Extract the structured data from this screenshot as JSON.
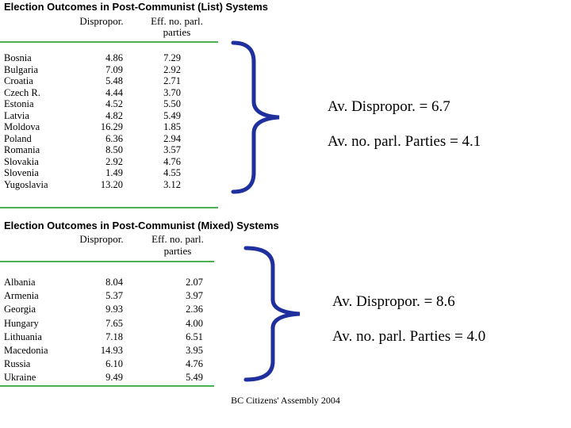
{
  "list_table": {
    "title": "Election Outcomes in Post-Communist (List) Systems",
    "col_disp": "Dispropor.",
    "col_eff_1": "Eff. no. parl.",
    "col_eff_2": "parties",
    "rows": [
      {
        "country": "Bosnia",
        "disp": "4.86",
        "eff": "7.29"
      },
      {
        "country": "Bulgaria",
        "disp": "7.09",
        "eff": "2.92"
      },
      {
        "country": "Croatia",
        "disp": "5.48",
        "eff": "2.71"
      },
      {
        "country": "Czech R.",
        "disp": "4.44",
        "eff": "3.70"
      },
      {
        "country": "Estonia",
        "disp": "4.52",
        "eff": "5.50"
      },
      {
        "country": "Latvia",
        "disp": "4.82",
        "eff": "5.49"
      },
      {
        "country": "Moldova",
        "disp": "16.29",
        "eff": "1.85"
      },
      {
        "country": "Poland",
        "disp": "6.36",
        "eff": "2.94"
      },
      {
        "country": "Romania",
        "disp": "8.50",
        "eff": "3.57"
      },
      {
        "country": "Slovakia",
        "disp": "2.92",
        "eff": "4.76"
      },
      {
        "country": "Slovenia",
        "disp": "1.49",
        "eff": "4.55"
      },
      {
        "country": "Yugoslavia",
        "disp": "13.20",
        "eff": "3.12"
      }
    ]
  },
  "mixed_table": {
    "title": "Election Outcomes in Post-Communist (Mixed) Systems",
    "col_disp": "Dispropor.",
    "col_eff_1": "Eff. no. parl.",
    "col_eff_2": "parties",
    "rows": [
      {
        "country": "Albania",
        "disp": "8.04",
        "eff": "2.07"
      },
      {
        "country": "Armenia",
        "disp": "5.37",
        "eff": "3.97"
      },
      {
        "country": "Georgia",
        "disp": "9.93",
        "eff": "2.36"
      },
      {
        "country": "Hungary",
        "disp": "7.65",
        "eff": "4.00"
      },
      {
        "country": "Lithuania",
        "disp": "7.18",
        "eff": "6.51"
      },
      {
        "country": "Macedonia",
        "disp": "14.93",
        "eff": "3.95"
      },
      {
        "country": "Russia",
        "disp": "6.10",
        "eff": "4.76"
      },
      {
        "country": "Ukraine",
        "disp": "9.49",
        "eff": "5.49"
      }
    ]
  },
  "summary_list": {
    "disp": "Av. Dispropor. = 6.7",
    "parties": "Av. no. parl. Parties = 4.1"
  },
  "summary_mixed": {
    "disp": "Av. Dispropor. = 8.6",
    "parties": "Av. no. parl. Parties = 4.0"
  },
  "footer": "BC Citizens' Assembly 2004",
  "colors": {
    "rule": "#4caf50",
    "brace": "#1f2f9e"
  }
}
